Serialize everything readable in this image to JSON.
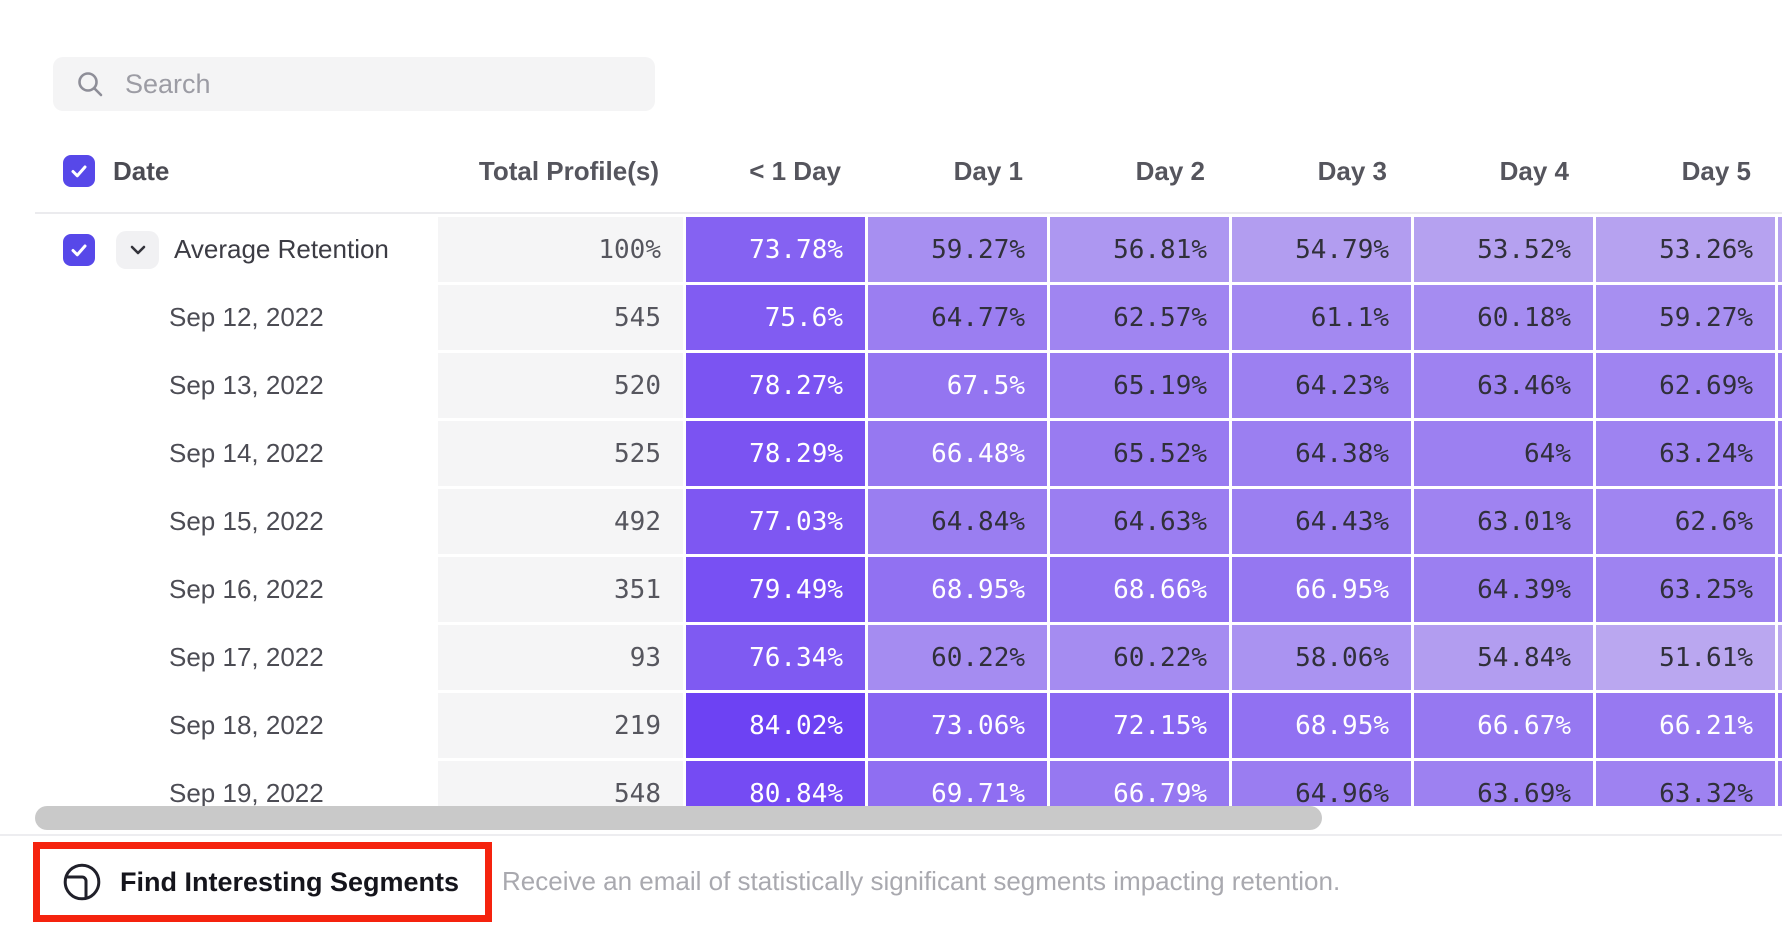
{
  "search": {
    "placeholder": "Search"
  },
  "table": {
    "header": {
      "date_label": "Date",
      "columns": [
        "Total Profile(s)",
        "< 1 Day",
        "Day 1",
        "Day 2",
        "Day 3",
        "Day 4",
        "Day 5"
      ]
    },
    "rows": [
      {
        "label": "Average Retention",
        "is_average": true,
        "total": "100%",
        "values": [
          "73.78%",
          "59.27%",
          "56.81%",
          "54.79%",
          "53.52%",
          "53.26%"
        ]
      },
      {
        "label": "Sep 12, 2022",
        "is_average": false,
        "total": "545",
        "values": [
          "75.6%",
          "64.77%",
          "62.57%",
          "61.1%",
          "60.18%",
          "59.27%"
        ]
      },
      {
        "label": "Sep 13, 2022",
        "is_average": false,
        "total": "520",
        "values": [
          "78.27%",
          "67.5%",
          "65.19%",
          "64.23%",
          "63.46%",
          "62.69%"
        ]
      },
      {
        "label": "Sep 14, 2022",
        "is_average": false,
        "total": "525",
        "values": [
          "78.29%",
          "66.48%",
          "65.52%",
          "64.38%",
          "64%",
          "63.24%"
        ]
      },
      {
        "label": "Sep 15, 2022",
        "is_average": false,
        "total": "492",
        "values": [
          "77.03%",
          "64.84%",
          "64.63%",
          "64.43%",
          "63.01%",
          "62.6%"
        ]
      },
      {
        "label": "Sep 16, 2022",
        "is_average": false,
        "total": "351",
        "values": [
          "79.49%",
          "68.95%",
          "68.66%",
          "66.95%",
          "64.39%",
          "63.25%"
        ]
      },
      {
        "label": "Sep 17, 2022",
        "is_average": false,
        "total": "93",
        "values": [
          "76.34%",
          "60.22%",
          "60.22%",
          "58.06%",
          "54.84%",
          "51.61%"
        ]
      },
      {
        "label": "Sep 18, 2022",
        "is_average": false,
        "total": "219",
        "values": [
          "84.02%",
          "73.06%",
          "72.15%",
          "68.95%",
          "66.67%",
          "66.21%"
        ]
      },
      {
        "label": "Sep 19, 2022",
        "is_average": false,
        "total": "548",
        "values": [
          "80.84%",
          "69.71%",
          "66.79%",
          "64.96%",
          "63.69%",
          "63.32%"
        ]
      }
    ]
  },
  "heatmap": {
    "scale_min": 51,
    "scale_max": 84.5,
    "light_rgb": [
      187,
      169,
      240
    ],
    "dark_rgb": [
      108,
      64,
      243
    ],
    "light_color": "#bba9f0",
    "dark_color": "#6c40f3",
    "white_text_threshold": 66,
    "dark_text_color": "#30303a",
    "accent_color": "#5748e9",
    "total_cell_bg": "#f5f5f6"
  },
  "scrollbar": {
    "orientation": "horizontal"
  },
  "footer": {
    "button_label": "Find Interesting Segments",
    "description": "Receive an email of statistically significant segments impacting retention.",
    "highlight_color": "#f5230e"
  }
}
